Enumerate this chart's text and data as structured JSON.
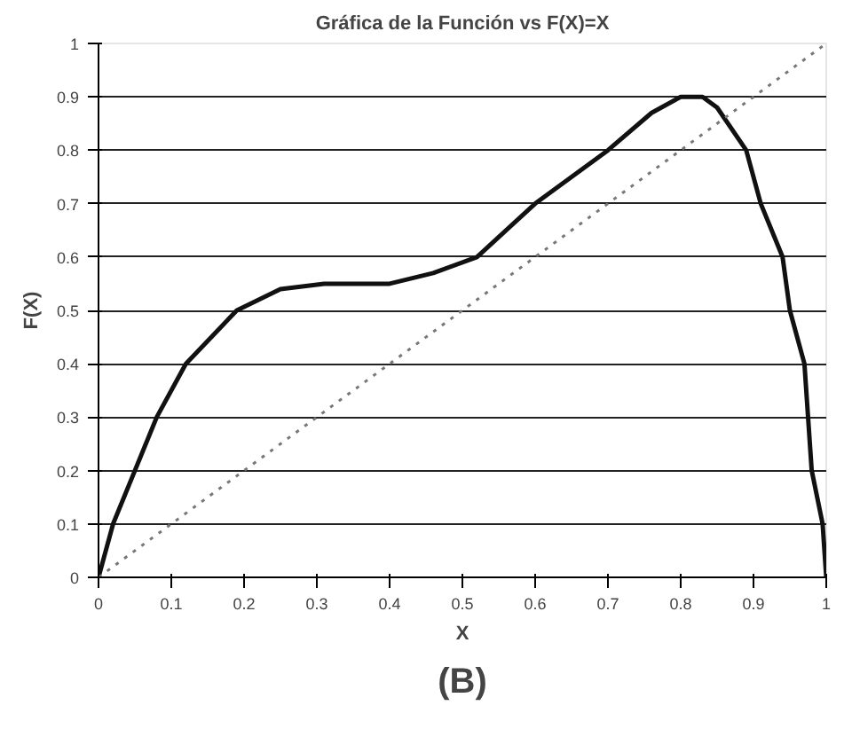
{
  "chart_data": {
    "type": "line",
    "title": "Gráfica de la Función vs F(X)=X",
    "xlabel": "X",
    "ylabel": "F(X)",
    "annotations": [
      "(B)"
    ],
    "xlim": [
      0,
      1
    ],
    "ylim": [
      0,
      1
    ],
    "xticks": [
      0,
      0.1,
      0.2,
      0.3,
      0.4,
      0.5,
      0.6,
      0.7,
      0.8,
      0.9,
      1
    ],
    "yticks": [
      0,
      0.1,
      0.2,
      0.3,
      0.4,
      0.5,
      0.6,
      0.7,
      0.8,
      0.9,
      1
    ],
    "grid": "y",
    "series": [
      {
        "color": "#111111",
        "line_style": "solid",
        "x": [
          0,
          0.02,
          0.05,
          0.08,
          0.12,
          0.19,
          0.25,
          0.31,
          0.4,
          0.46,
          0.52,
          0.6,
          0.7,
          0.76,
          0.8,
          0.83,
          0.85,
          0.89,
          0.91,
          0.94,
          0.95,
          0.97,
          0.975,
          0.98,
          0.995,
          1
        ],
        "values": [
          0,
          0.1,
          0.2,
          0.3,
          0.4,
          0.5,
          0.54,
          0.55,
          0.55,
          0.57,
          0.6,
          0.7,
          0.8,
          0.87,
          0.9,
          0.9,
          0.88,
          0.8,
          0.7,
          0.6,
          0.5,
          0.4,
          0.3,
          0.2,
          0.1,
          0
        ]
      },
      {
        "color": "#777777",
        "line_style": "dotted",
        "x": [
          0,
          1
        ],
        "values": [
          0,
          1
        ]
      }
    ]
  }
}
